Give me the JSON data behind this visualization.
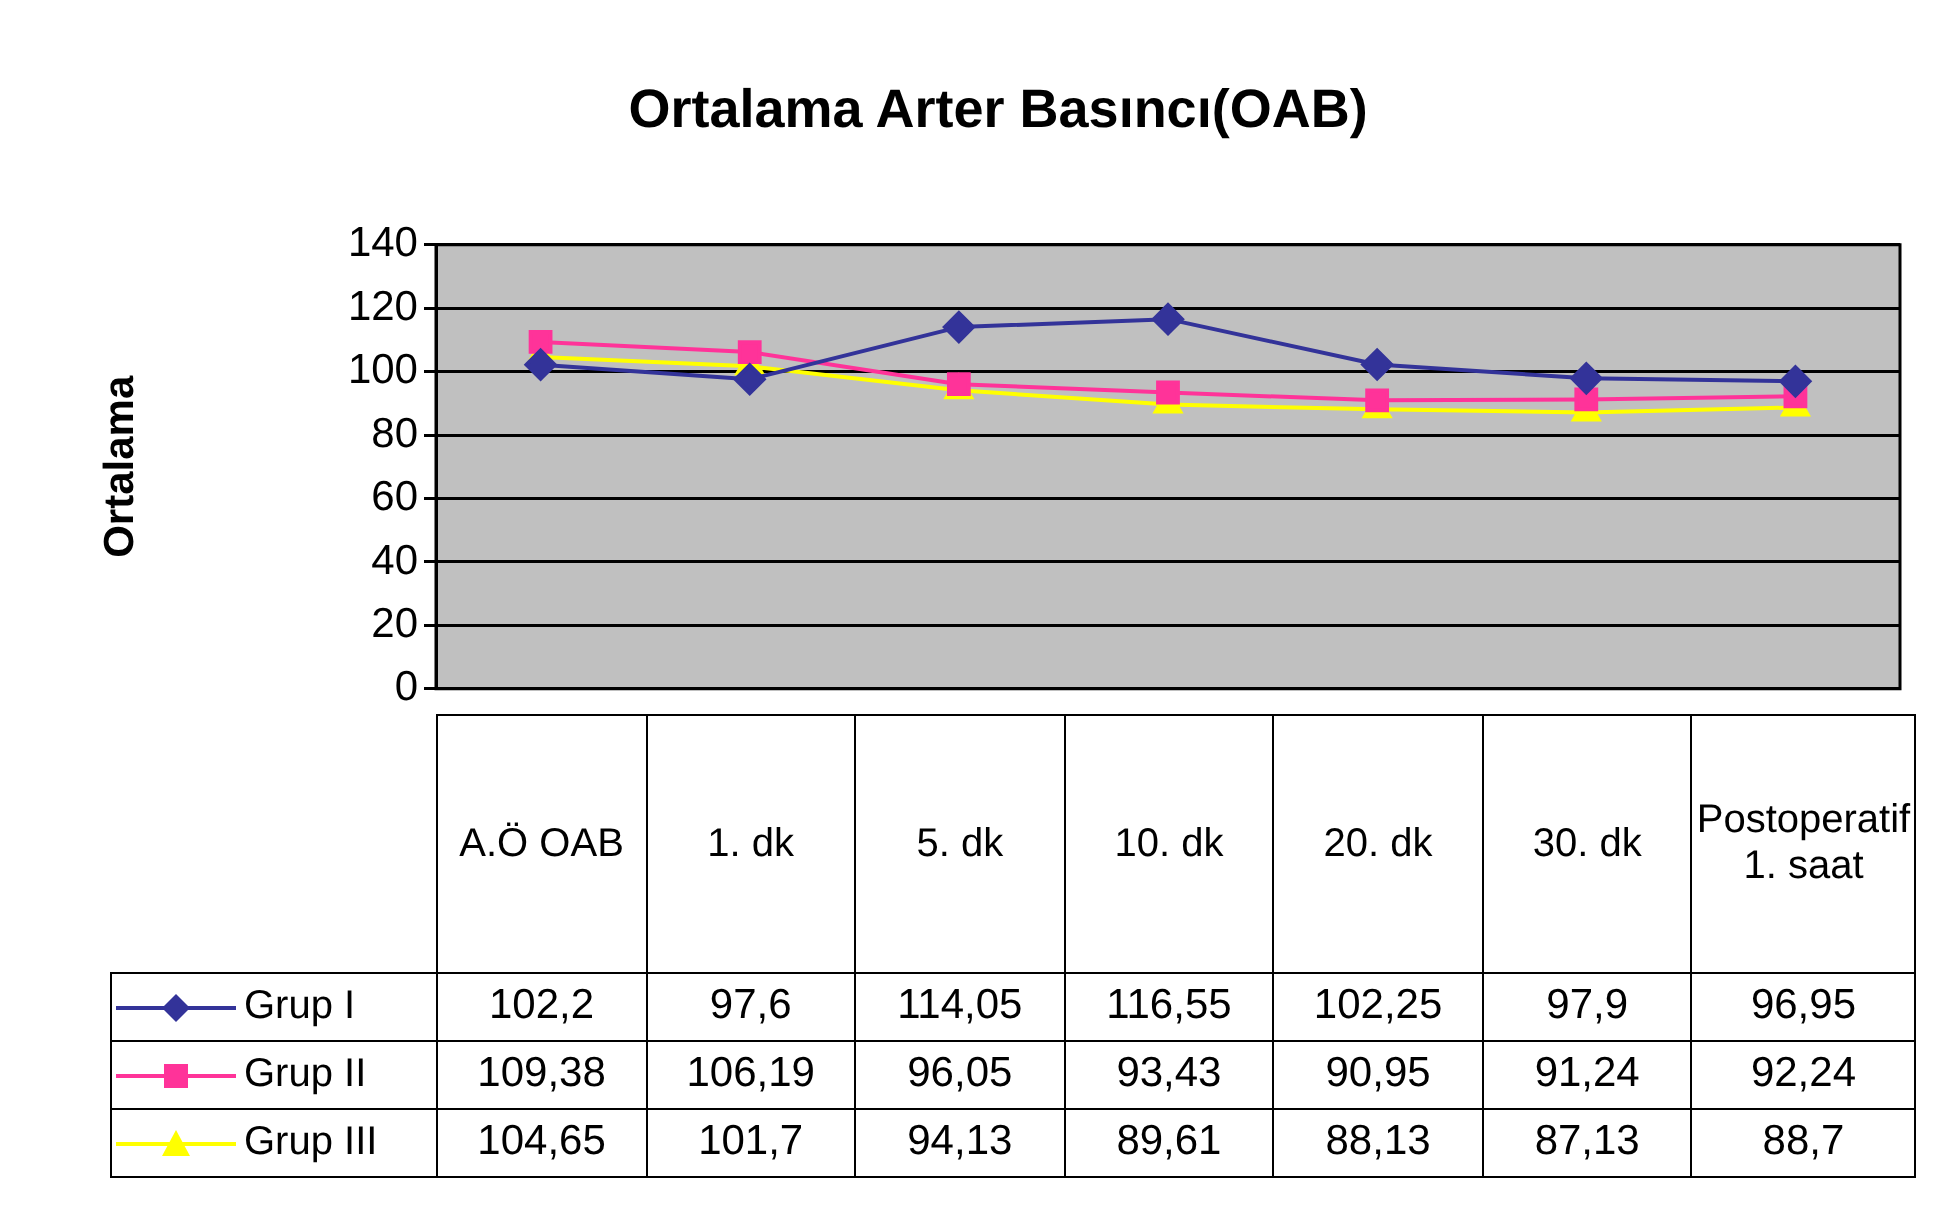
{
  "chart_data": {
    "type": "line",
    "title": "Ortalama Arter Basıncı(OAB)",
    "ylabel": "Ortalama",
    "categories": [
      "A.Ö OAB",
      "1. dk",
      "5. dk",
      "10. dk",
      "20. dk",
      "30. dk",
      "Postoperatif 1. saat"
    ],
    "series": [
      {
        "name": "Grup I",
        "color": "#333399",
        "marker": "diamond",
        "values": [
          102.2,
          97.6,
          114.05,
          116.55,
          102.25,
          97.9,
          96.95
        ],
        "value_labels": [
          "102,2",
          "97,6",
          "114,05",
          "116,55",
          "102,25",
          "97,9",
          "96,95"
        ]
      },
      {
        "name": "Grup II",
        "color": "#ff3399",
        "marker": "square",
        "values": [
          109.38,
          106.19,
          96.05,
          93.43,
          90.95,
          91.24,
          92.24
        ],
        "value_labels": [
          "109,38",
          "106,19",
          "96,05",
          "93,43",
          "90,95",
          "91,24",
          "92,24"
        ]
      },
      {
        "name": "Grup III",
        "color": "#ffff00",
        "marker": "triangle",
        "values": [
          104.65,
          101.7,
          94.13,
          89.61,
          88.13,
          87.13,
          88.7
        ],
        "value_labels": [
          "104,65",
          "101,7",
          "94,13",
          "89,61",
          "88,13",
          "87,13",
          "88,7"
        ]
      }
    ],
    "ylim": [
      0,
      140
    ],
    "yticks": [
      0,
      20,
      40,
      60,
      80,
      100,
      120,
      140
    ],
    "grid": "y",
    "legend": "bottom",
    "line_style": "solid"
  }
}
